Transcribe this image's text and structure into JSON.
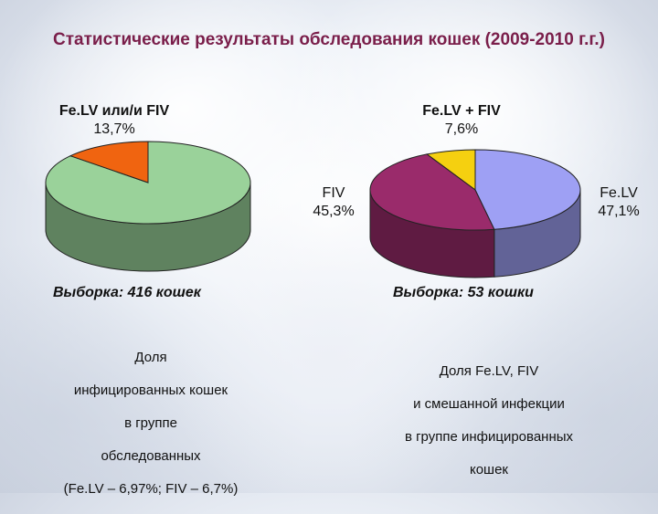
{
  "title": "Статистические результаты обследования кошек (2009-2010 г.г.)",
  "chart_data": [
    {
      "type": "pie",
      "slices": [
        {
          "label": "Fe.LV или/и FIV",
          "value_label": "13,7%",
          "value": 13.7,
          "color": "#f06410"
        },
        {
          "label": "",
          "value_label": "",
          "value": 86.3,
          "color": "#9ad29a"
        }
      ],
      "sample": "Выборка: 416 кошек",
      "caption_lines": [
        "Доля",
        "инфицированных кошек",
        "в группе",
        "обследованных",
        "(Fe.LV – 6,97%; FIV – 6,7%)"
      ]
    },
    {
      "type": "pie",
      "slices": [
        {
          "label": "Fe.LV + FIV",
          "value_label": "7,6%",
          "value": 7.6,
          "color": "#f5d010"
        },
        {
          "label": "Fe.LV",
          "value_label": "47,1%",
          "value": 47.1,
          "color": "#9ea0f4"
        },
        {
          "label": "FIV",
          "value_label": "45,3%",
          "value": 45.3,
          "color": "#9a2b6b"
        }
      ],
      "sample": "Выборка:  53 кошки",
      "caption_lines": [
        "Доля Fe.LV, FIV",
        "и смешанной инфекции",
        "в группе инфицированных",
        "кошек"
      ]
    }
  ]
}
